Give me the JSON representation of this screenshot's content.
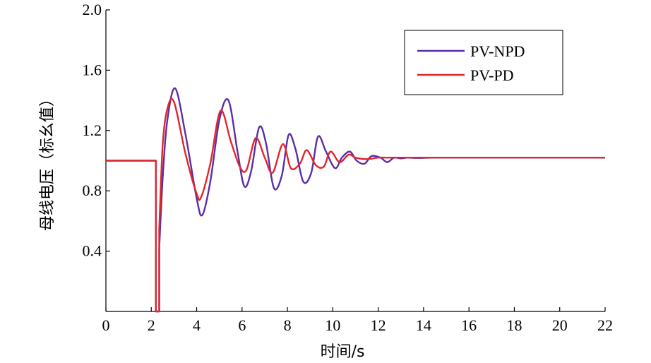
{
  "chart_data": {
    "type": "line",
    "title": "",
    "xlabel": "时间/s",
    "ylabel": "母线电压（标幺值）",
    "xlim": [
      0,
      22
    ],
    "ylim": [
      0,
      2.0
    ],
    "x_ticks": [
      0,
      2,
      4,
      6,
      8,
      10,
      12,
      14,
      16,
      18,
      20,
      22
    ],
    "x_tick_labels": [
      "0",
      "2",
      "4",
      "6",
      "8",
      "10",
      "12",
      "14",
      "16",
      "18",
      "20",
      "22"
    ],
    "y_ticks": [
      0.4,
      0.8,
      1.2,
      1.6,
      2.0
    ],
    "y_tick_labels": [
      "0.4",
      "0.8",
      "1.2",
      "1.6",
      "2.0"
    ],
    "grid": false,
    "legend": "top-right",
    "series": [
      {
        "name": "PV-NPD",
        "color": "#5a2ea6",
        "x": [
          0.0,
          2.2,
          2.2,
          2.35,
          2.35,
          2.5,
          2.7,
          3.05,
          3.5,
          4.0,
          4.25,
          4.6,
          5.0,
          5.4,
          5.8,
          6.1,
          6.4,
          6.75,
          7.05,
          7.4,
          7.75,
          8.05,
          8.35,
          8.7,
          9.05,
          9.35,
          9.7,
          10.1,
          10.4,
          10.75,
          11.05,
          11.4,
          11.7,
          12.1,
          12.4,
          12.7,
          13.0,
          13.3,
          13.7,
          14.5,
          16.0,
          18.0,
          22.0
        ],
        "y": [
          1.0,
          1.0,
          0.0,
          0.0,
          0.42,
          0.88,
          1.26,
          1.48,
          1.18,
          0.75,
          0.64,
          0.86,
          1.27,
          1.4,
          1.06,
          0.83,
          0.93,
          1.22,
          1.12,
          0.82,
          0.9,
          1.17,
          1.08,
          0.86,
          0.92,
          1.16,
          1.06,
          0.95,
          1.02,
          1.06,
          1.0,
          0.98,
          1.03,
          1.02,
          0.99,
          1.02,
          1.015,
          1.02,
          1.018,
          1.02,
          1.02,
          1.02,
          1.02
        ]
      },
      {
        "name": "PV-PD",
        "color": "#e0262b",
        "x": [
          0.0,
          2.2,
          2.2,
          2.35,
          2.35,
          2.5,
          2.7,
          3.0,
          3.5,
          4.0,
          4.2,
          4.6,
          5.05,
          5.5,
          5.9,
          6.2,
          6.6,
          7.0,
          7.35,
          7.8,
          8.15,
          8.55,
          8.85,
          9.25,
          9.6,
          9.9,
          10.3,
          10.7,
          11.0,
          11.5,
          12.0,
          12.5,
          13.0,
          14.0,
          16.0,
          18.0,
          22.0
        ],
        "y": [
          1.0,
          1.0,
          0.0,
          0.0,
          0.55,
          1.1,
          1.34,
          1.39,
          1.05,
          0.78,
          0.76,
          0.98,
          1.33,
          1.13,
          0.96,
          0.94,
          1.15,
          1.02,
          0.92,
          1.11,
          0.95,
          0.98,
          1.07,
          0.97,
          0.96,
          1.06,
          0.99,
          1.04,
          1.02,
          1.01,
          1.02,
          1.02,
          1.02,
          1.02,
          1.02,
          1.02,
          1.02
        ]
      }
    ]
  }
}
